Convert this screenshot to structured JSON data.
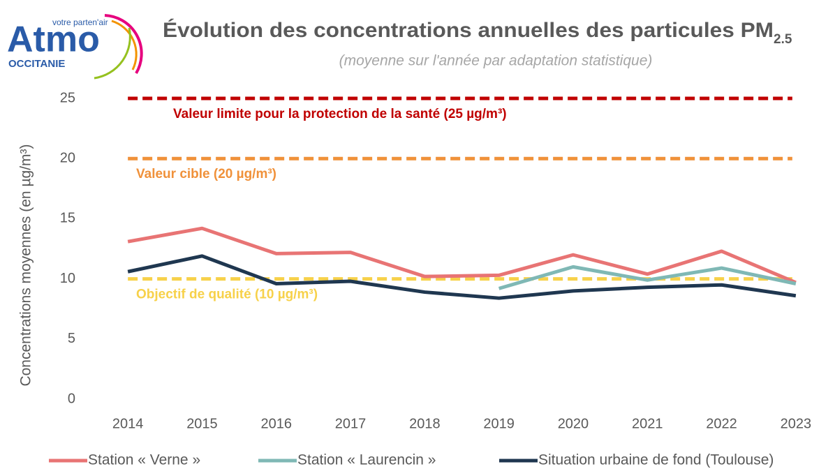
{
  "logo": {
    "tagline": "votre parten'air",
    "name": "Atmo",
    "region": "OCCITANIE"
  },
  "chart_data": {
    "type": "line",
    "title": "Évolution des concentrations annuelles des particules PM",
    "title_subscript": "2.5",
    "subtitle": "(moyenne sur l'année par adaptation statistique)",
    "y_label": "Concentrations moyennes (en µg/m³)",
    "categories": [
      "2014",
      "2015",
      "2016",
      "2017",
      "2018",
      "2019",
      "2020",
      "2021",
      "2022",
      "2023"
    ],
    "series": [
      {
        "name": "Station « Verne »",
        "color": "#e87474",
        "values": [
          13.1,
          14.2,
          12.1,
          12.2,
          10.2,
          10.3,
          12.0,
          10.4,
          12.3,
          9.7
        ]
      },
      {
        "name": "Station « Laurencin »",
        "color": "#7fb8b5",
        "values": [
          null,
          null,
          null,
          null,
          null,
          9.2,
          11.0,
          9.9,
          10.9,
          9.6
        ]
      },
      {
        "name": "Situation urbaine de fond (Toulouse)",
        "color": "#1f3750",
        "values": [
          10.6,
          11.9,
          9.6,
          9.8,
          8.9,
          8.4,
          9.0,
          9.3,
          9.5,
          8.6
        ]
      }
    ],
    "thresholds": [
      {
        "value": 25,
        "label": "Valeur limite pour la protection de la santé (25 µg/m³)",
        "color": "#c00000"
      },
      {
        "value": 20,
        "label": "Valeur cible (20 µg/m³)",
        "color": "#f0913a"
      },
      {
        "value": 10,
        "label": "Objectif de qualité (10 µg/m³)",
        "color": "#f7d14a"
      }
    ],
    "ylim": [
      0,
      25
    ],
    "yticks": [
      0,
      5,
      10,
      15,
      20,
      25
    ],
    "legend": "bottom"
  }
}
